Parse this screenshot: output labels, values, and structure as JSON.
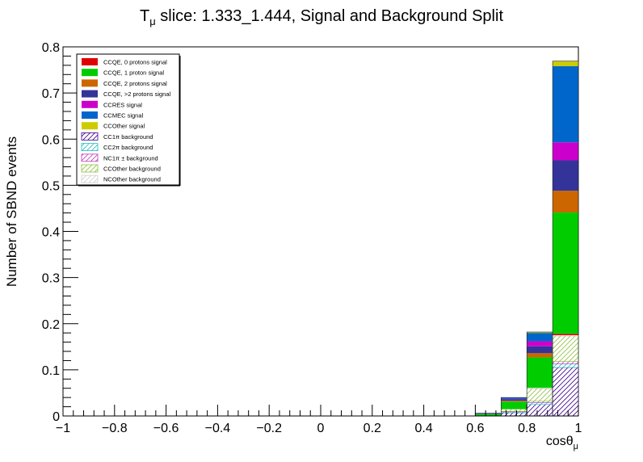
{
  "chart_data": {
    "type": "bar",
    "stacked": true,
    "histogram": true,
    "title_main": "T",
    "title_sub": "μ",
    "title_rest": " slice: 1.333_1.444, Signal and Background Split",
    "xlabel_main": "cosθ",
    "xlabel_sub": "μ",
    "ylabel": "Number of SBND events",
    "xlim": [
      -1,
      1
    ],
    "ylim": [
      0,
      0.8
    ],
    "x_ticks": [
      "−1",
      "−0.8",
      "−0.6",
      "−0.4",
      "−0.2",
      "0",
      "0.2",
      "0.4",
      "0.6",
      "0.8",
      "1"
    ],
    "x_tick_values": [
      -1,
      -0.8,
      -0.6,
      -0.4,
      -0.2,
      0,
      0.2,
      0.4,
      0.6,
      0.8,
      1
    ],
    "y_ticks": [
      "0",
      "0.1",
      "0.2",
      "0.3",
      "0.4",
      "0.5",
      "0.6",
      "0.7",
      "0.8"
    ],
    "y_tick_values": [
      0,
      0.1,
      0.2,
      0.3,
      0.4,
      0.5,
      0.6,
      0.7,
      0.8
    ],
    "bin_edges": [
      0.6,
      0.7,
      0.8,
      0.9,
      1.0
    ],
    "legend_position": "top-left",
    "series": [
      {
        "name": "CC1π background",
        "color": "#3f008e",
        "pattern": "hatch-diag",
        "values": [
          0.0,
          0.007,
          0.025,
          0.105
        ]
      },
      {
        "name": "CC2π background",
        "color": "#20c0c0",
        "pattern": "hatch-diag",
        "values": [
          0.0,
          0.002,
          0.004,
          0.008
        ]
      },
      {
        "name": "NC1π ± background",
        "color": "#c040c0",
        "pattern": "hatch-diag",
        "values": [
          0.0,
          0.001,
          0.003,
          0.005
        ]
      },
      {
        "name": "CCOther background",
        "color": "#90c040",
        "pattern": "hatch-diag",
        "values": [
          0.0,
          0.005,
          0.027,
          0.055
        ]
      },
      {
        "name": "NCOther background",
        "color": "#d0d0d0",
        "pattern": "hatch-diag",
        "values": [
          0.0,
          0.0,
          0.002,
          0.002
        ]
      },
      {
        "name": "CCQE, 0 protons signal",
        "color": "#e00000",
        "pattern": "solid",
        "values": [
          0.0,
          0.0,
          0.0,
          0.003
        ]
      },
      {
        "name": "CCQE, 1 proton signal",
        "color": "#00cc00",
        "pattern": "solid",
        "values": [
          0.004,
          0.016,
          0.066,
          0.263
        ]
      },
      {
        "name": "CCQE, 2 protons signal",
        "color": "#cc6600",
        "pattern": "solid",
        "values": [
          0.0,
          0.002,
          0.009,
          0.047
        ]
      },
      {
        "name": "CCQE, >2 protons signal",
        "color": "#333399",
        "pattern": "solid",
        "values": [
          0.001,
          0.003,
          0.015,
          0.066
        ]
      },
      {
        "name": "CCRES signal",
        "color": "#cc00cc",
        "pattern": "solid",
        "values": [
          0.0,
          0.001,
          0.011,
          0.039
        ]
      },
      {
        "name": "CCMEC signal",
        "color": "#0066cc",
        "pattern": "solid",
        "values": [
          0.001,
          0.003,
          0.018,
          0.165
        ]
      },
      {
        "name": "CCOther signal",
        "color": "#cccc00",
        "pattern": "solid",
        "values": [
          0.0,
          0.0,
          0.002,
          0.011
        ]
      }
    ],
    "legend_order": [
      "CCQE, 0 protons signal",
      "CCQE, 1 proton signal",
      "CCQE, 2 protons signal",
      "CCQE, >2 protons signal",
      "CCRES signal",
      "CCMEC signal",
      "CCOther signal",
      "CC1π background",
      "CC2π background",
      "NC1π ± background",
      "CCOther background",
      "NCOther background"
    ]
  }
}
